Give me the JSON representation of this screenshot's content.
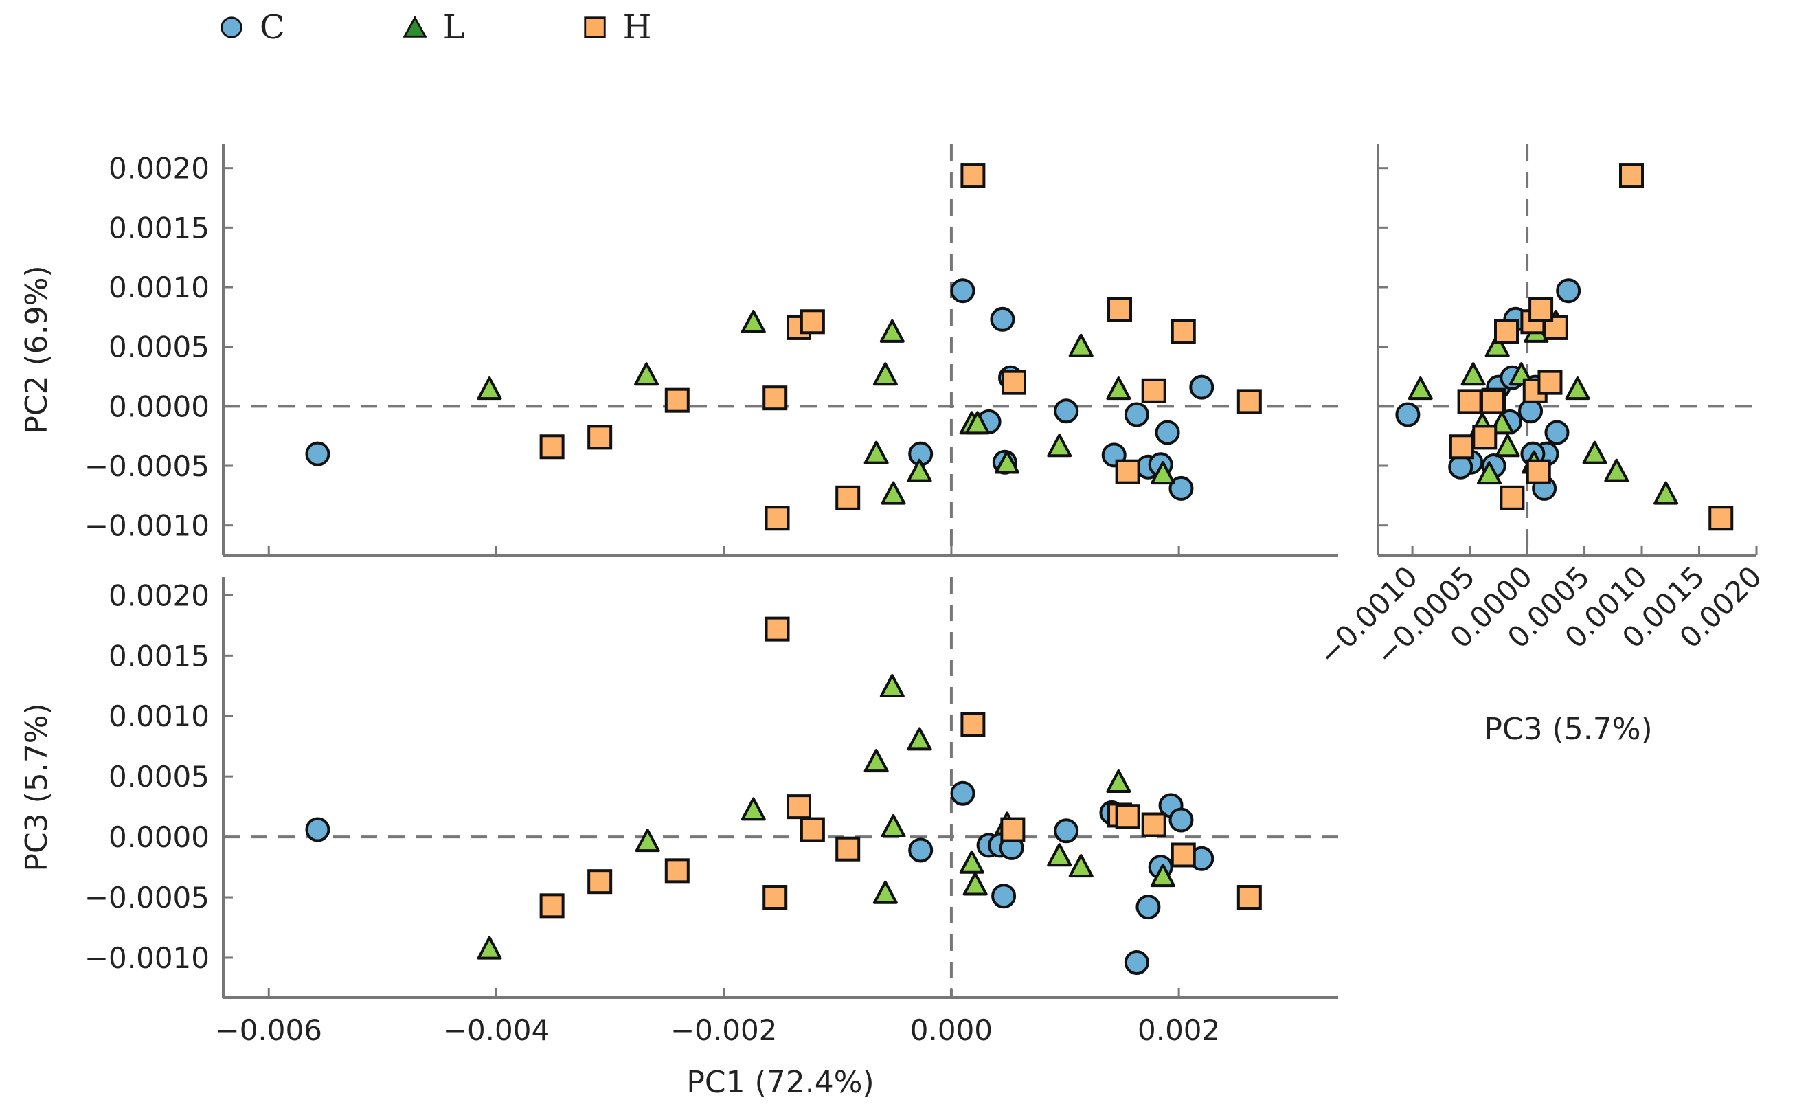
{
  "legend": {
    "items": [
      {
        "key": "C",
        "label": "C",
        "shape": "circle",
        "color": "#6baed6"
      },
      {
        "key": "L",
        "label": "L",
        "shape": "triangle",
        "color": "#2e8b2e"
      },
      {
        "key": "H",
        "label": "H",
        "shape": "square",
        "color": "#fdae61"
      }
    ]
  },
  "colors": {
    "C": "#6baed6",
    "L": "#8fd14f",
    "H": "#fdb36b",
    "outline": "#111111",
    "axis": "#777777",
    "reference": "#777777"
  },
  "chart_data": [
    {
      "type": "scatter",
      "panel": "pc1-pc2",
      "xlabel": "",
      "ylabel": "PC2 (6.9%)",
      "xlim": [
        -0.0064,
        0.0034
      ],
      "ylim": [
        -0.00125,
        0.0022
      ],
      "xticks": [
        -0.006,
        -0.004,
        -0.002,
        0.0,
        0.002
      ],
      "xticklabels": [],
      "yticks": [
        -0.001,
        -0.0005,
        0.0,
        0.0005,
        0.001,
        0.0015,
        0.002
      ],
      "yticklabels": [
        "−0.0010",
        "−0.0005",
        "0.0000",
        "0.0005",
        "0.0010",
        "0.0015",
        "0.0020"
      ],
      "reference_lines": {
        "x": 0,
        "y": 0
      },
      "series": [
        {
          "name": "C",
          "points": [
            [
              -0.00557,
              -0.0004
            ],
            [
              0.0001,
              0.00097
            ],
            [
              0.00045,
              0.00073
            ],
            [
              0.00052,
              0.00024
            ],
            [
              0.00033,
              -0.00013
            ],
            [
              0.00047,
              -0.00047
            ],
            [
              -0.00027,
              -0.0004
            ],
            [
              0.00101,
              -4e-05
            ],
            [
              0.00143,
              -0.00041
            ],
            [
              0.00163,
              -7e-05
            ],
            [
              0.00173,
              -0.00051
            ],
            [
              0.00184,
              -0.00049
            ],
            [
              0.0019,
              -0.00022
            ],
            [
              0.00202,
              -0.00069
            ],
            [
              0.0022,
              0.00016
            ]
          ]
        },
        {
          "name": "L",
          "points": [
            [
              -0.00406,
              0.00014
            ],
            [
              -0.00268,
              0.00026
            ],
            [
              -0.00174,
              0.0007
            ],
            [
              -0.00052,
              0.00062
            ],
            [
              -0.00058,
              0.00026
            ],
            [
              -0.00066,
              -0.0004
            ],
            [
              -0.00051,
              -0.00074
            ],
            [
              -0.00028,
              -0.00055
            ],
            [
              0.00018,
              -0.00015
            ],
            [
              0.00023,
              -0.00015
            ],
            [
              0.00049,
              -0.00048
            ],
            [
              0.00095,
              -0.00034
            ],
            [
              0.00114,
              0.0005
            ],
            [
              0.00147,
              0.00014
            ],
            [
              0.00186,
              -0.00057
            ]
          ]
        },
        {
          "name": "H",
          "points": [
            [
              0.00019,
              0.00194
            ],
            [
              -0.00134,
              0.00066
            ],
            [
              -0.00122,
              0.00071
            ],
            [
              -0.00241,
              5e-05
            ],
            [
              -0.00155,
              7e-05
            ],
            [
              -0.00351,
              -0.00034
            ],
            [
              -0.00309,
              -0.00026
            ],
            [
              -0.00153,
              -0.00094
            ],
            [
              -0.00091,
              -0.00077
            ],
            [
              0.00055,
              0.0002
            ],
            [
              0.00148,
              0.00081
            ],
            [
              0.00178,
              0.00013
            ],
            [
              0.00204,
              0.00063
            ],
            [
              0.00155,
              -0.00055
            ],
            [
              0.00262,
              4e-05
            ]
          ]
        }
      ]
    },
    {
      "type": "scatter",
      "panel": "pc3-pc2",
      "xlabel": "PC3 (5.7%)",
      "ylabel": "",
      "xlim": [
        -0.0013,
        0.002
      ],
      "ylim": [
        -0.00125,
        0.0022
      ],
      "xticks": [
        -0.001,
        -0.0005,
        0.0,
        0.0005,
        0.001,
        0.0015,
        0.002
      ],
      "xticklabels": [
        "−0.0010",
        "−0.0005",
        "0.0000",
        "0.0005",
        "0.0010",
        "0.0015",
        "0.0020"
      ],
      "yticks": [
        -0.001,
        -0.0005,
        0.0,
        0.0005,
        0.001,
        0.0015,
        0.002
      ],
      "yticklabels": [],
      "reference_lines": {
        "x": 0,
        "y": 0
      },
      "series": [
        {
          "name": "C",
          "points": [
            [
              -0.00104,
              -7e-05
            ],
            [
              0.00036,
              0.00097
            ],
            [
              -0.0001,
              0.00073
            ],
            [
              -0.00025,
              0.00016
            ],
            [
              -0.00013,
              0.00024
            ],
            [
              7e-05,
              0.00016
            ],
            [
              -0.00029,
              -0.0005
            ],
            [
              -0.00015,
              -0.00013
            ],
            [
              3e-05,
              -4e-05
            ],
            [
              0.00017,
              -0.0004
            ],
            [
              5e-05,
              -0.0004
            ],
            [
              0.00026,
              -0.00022
            ],
            [
              -0.00049,
              -0.00047
            ],
            [
              -0.00058,
              -0.00051
            ],
            [
              0.00015,
              -0.00069
            ]
          ]
        },
        {
          "name": "L",
          "points": [
            [
              -0.00093,
              0.00014
            ],
            [
              -0.00047,
              0.00026
            ],
            [
              -0.00039,
              -0.00016
            ],
            [
              -0.00026,
              0.0005
            ],
            [
              -0.00017,
              -0.00034
            ],
            [
              -5e-05,
              0.00026
            ],
            [
              8e-05,
              0.00062
            ],
            [
              0.00025,
              0.0007
            ],
            [
              0.00044,
              0.00014
            ],
            [
              6e-05,
              -0.00048
            ],
            [
              -0.00033,
              -0.00057
            ],
            [
              -0.00022,
              -0.00015
            ],
            [
              0.00059,
              -0.0004
            ],
            [
              0.00078,
              -0.00055
            ],
            [
              0.00121,
              -0.00074
            ]
          ]
        },
        {
          "name": "H",
          "points": [
            [
              0.00091,
              0.00194
            ],
            [
              0.00025,
              0.00066
            ],
            [
              5e-05,
              0.00071
            ],
            [
              -0.00018,
              0.00063
            ],
            [
              0.00012,
              0.00081
            ],
            [
              -0.0005,
              4e-05
            ],
            [
              -0.00029,
              5e-05
            ],
            [
              -0.00037,
              -0.00026
            ],
            [
              -0.00057,
              -0.00034
            ],
            [
              7e-05,
              0.00013
            ],
            [
              0.0002,
              0.0002
            ],
            [
              -0.00013,
              -0.00077
            ],
            [
              0.0001,
              -0.00055
            ],
            [
              -0.0003,
              4e-05
            ],
            [
              0.00169,
              -0.00094
            ]
          ]
        }
      ]
    },
    {
      "type": "scatter",
      "panel": "pc1-pc3",
      "xlabel": "PC1 (72.4%)",
      "ylabel": "PC3 (5.7%)",
      "xlim": [
        -0.0064,
        0.0034
      ],
      "ylim": [
        -0.00133,
        0.00215
      ],
      "xticks": [
        -0.006,
        -0.004,
        -0.002,
        0.0,
        0.002
      ],
      "xticklabels": [
        "−0.006",
        "−0.004",
        "−0.002",
        "0.000",
        "0.002"
      ],
      "yticks": [
        -0.001,
        -0.0005,
        0.0,
        0.0005,
        0.001,
        0.0015,
        0.002
      ],
      "yticklabels": [
        "−0.0010",
        "−0.0005",
        "0.0000",
        "0.0005",
        "0.0010",
        "0.0015",
        "0.0020"
      ],
      "reference_lines": {
        "x": 0,
        "y": 0
      },
      "series": [
        {
          "name": "C",
          "points": [
            [
              -0.00557,
              6e-05
            ],
            [
              0.0001,
              0.00036
            ],
            [
              0.00033,
              -7e-05
            ],
            [
              0.00043,
              -7e-05
            ],
            [
              0.00053,
              -9e-05
            ],
            [
              0.00046,
              -0.00049
            ],
            [
              -0.00027,
              -0.00011
            ],
            [
              0.00101,
              5e-05
            ],
            [
              0.00141,
              0.0002
            ],
            [
              0.00163,
              -0.00104
            ],
            [
              0.00173,
              -0.00058
            ],
            [
              0.00184,
              -0.00025
            ],
            [
              0.00193,
              0.00026
            ],
            [
              0.00202,
              0.00014
            ],
            [
              0.0022,
              -0.00018
            ]
          ]
        },
        {
          "name": "L",
          "points": [
            [
              -0.00406,
              -0.00093
            ],
            [
              -0.00267,
              -4e-05
            ],
            [
              -0.00174,
              0.00022
            ],
            [
              -0.00052,
              0.00124
            ],
            [
              -0.00066,
              0.00062
            ],
            [
              -0.00028,
              0.0008
            ],
            [
              -0.00051,
              8e-05
            ],
            [
              -0.00058,
              -0.00047
            ],
            [
              0.00018,
              -0.00022
            ],
            [
              0.00021,
              -0.0004
            ],
            [
              0.00049,
              0.0001
            ],
            [
              0.00095,
              -0.00016
            ],
            [
              0.00114,
              -0.00025
            ],
            [
              0.00147,
              0.00045
            ],
            [
              0.00186,
              -0.00033
            ]
          ]
        },
        {
          "name": "H",
          "points": [
            [
              -0.00153,
              0.00172
            ],
            [
              0.00019,
              0.00093
            ],
            [
              -0.00134,
              0.00025
            ],
            [
              -0.00122,
              6e-05
            ],
            [
              -0.00091,
              -0.0001
            ],
            [
              -0.00241,
              -0.00028
            ],
            [
              -0.00309,
              -0.00037
            ],
            [
              -0.00351,
              -0.00057
            ],
            [
              -0.00155,
              -0.0005
            ],
            [
              0.00054,
              6e-05
            ],
            [
              0.00148,
              0.00018
            ],
            [
              0.00155,
              0.00017
            ],
            [
              0.00178,
              0.0001
            ],
            [
              0.00204,
              -0.00015
            ],
            [
              0.00262,
              -0.0005
            ]
          ]
        }
      ]
    }
  ]
}
